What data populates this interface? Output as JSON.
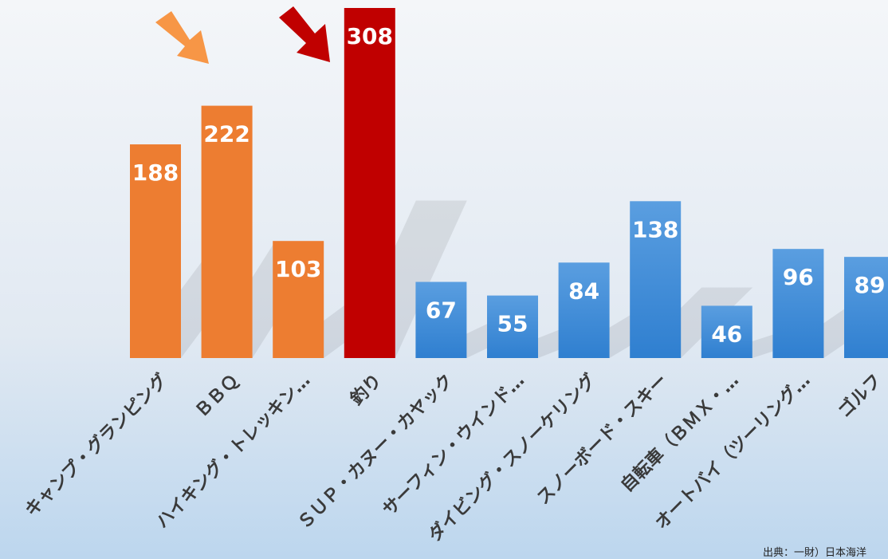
{
  "chart_data": {
    "type": "bar",
    "categories": [
      "キャンプ・グランピング",
      "ＢＢＱ",
      "ハイキング・トレッキン…",
      "釣り",
      "ＳＵＰ・カヌー・カヤック",
      "サーフィン・ウインド…",
      "ダイビング・スノーケリング",
      "スノーボード・スキー",
      "自転車（ＢＭＸ・…",
      "オートバイ（ツーリング…",
      "ゴルフ"
    ],
    "values": [
      188,
      222,
      103,
      308,
      67,
      55,
      84,
      138,
      46,
      96,
      89
    ],
    "colors": [
      "#ed7d31",
      "#ed7d31",
      "#ed7d31",
      "#c00000",
      "#3d8bd8",
      "#3d8bd8",
      "#3d8bd8",
      "#3d8bd8",
      "#3d8bd8",
      "#3d8bd8",
      "#3d8bd8"
    ],
    "source": "出典：一財）日本海洋"
  }
}
